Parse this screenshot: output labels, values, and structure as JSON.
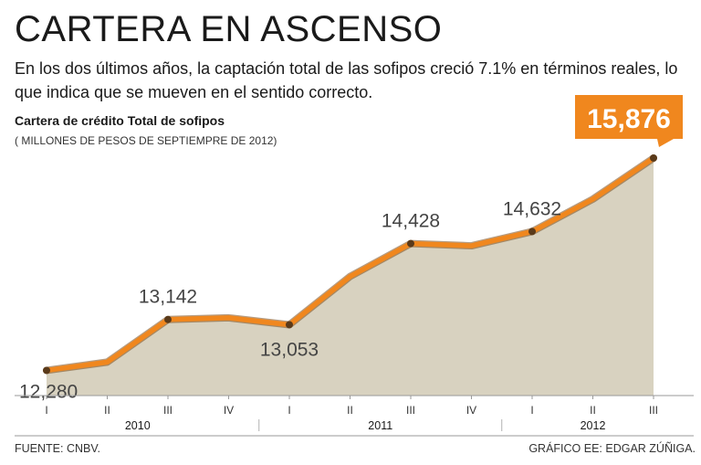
{
  "header": {
    "title": "CARTERA EN ASCENSO",
    "subtitle": "En los dos últimos años, la captación total de las sofipos creció 7.1% en términos reales, lo que indica que  se mueven en el sentido correcto."
  },
  "footer": {
    "source": "FUENTE: CNBV.",
    "credit": "GRÁFICO EE: EDGAR ZÚÑIGA."
  },
  "colors": {
    "line": "#f0871e",
    "line_outline": "#7a4a1a",
    "area": "#d8d2c0",
    "marker": "#5a3a1a",
    "callout": "#f0871e"
  },
  "chart_data": {
    "type": "area",
    "title": "Cartera de crédito Total de sofipos",
    "ylabel": "( MILLONES DE PESOS DE SEPTIEMPRE DE 2012)",
    "categories": [
      "I",
      "II",
      "III",
      "IV",
      "I",
      "II",
      "III",
      "IV",
      "I",
      "II",
      "III"
    ],
    "years": [
      {
        "label": "2010",
        "from": 0,
        "to": 3
      },
      {
        "label": "2011",
        "from": 4,
        "to": 7
      },
      {
        "label": "2012",
        "from": 8,
        "to": 10
      }
    ],
    "series": [
      {
        "values": [
          12280,
          12420,
          13142,
          13170,
          13053,
          13870,
          14428,
          14390,
          14632,
          15180,
          15876
        ]
      }
    ],
    "labeled_points": [
      {
        "index": 0,
        "label": "12,280",
        "position": "below"
      },
      {
        "index": 2,
        "label": "13,142",
        "position": "above"
      },
      {
        "index": 4,
        "label": "13,053",
        "position": "below"
      },
      {
        "index": 6,
        "label": "14,428",
        "position": "above"
      },
      {
        "index": 8,
        "label": "14,632",
        "position": "above"
      }
    ],
    "markers": [
      0,
      2,
      4,
      6,
      8,
      10
    ],
    "callout": {
      "index": 10,
      "label": "15,876"
    },
    "ylim": [
      11900,
      16000
    ],
    "grid": false,
    "legend": "none"
  }
}
